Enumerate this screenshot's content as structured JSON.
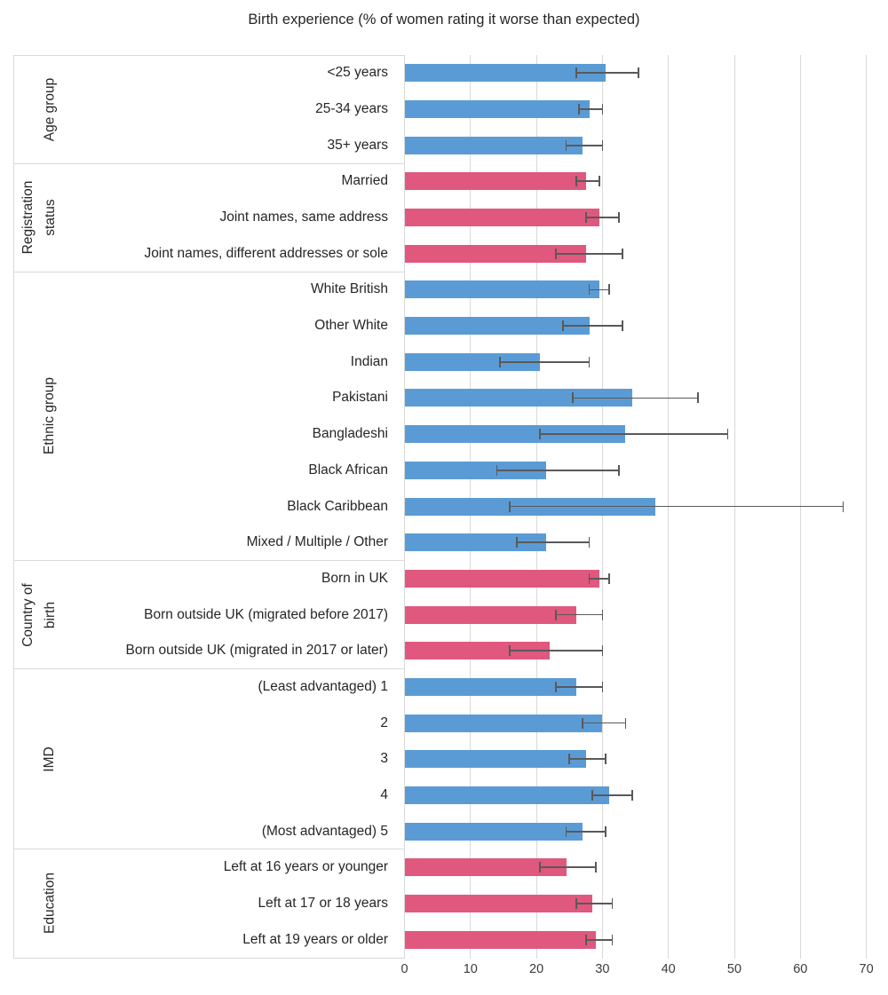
{
  "chart_data": {
    "type": "bar",
    "orientation": "horizontal",
    "title": "Birth experience (% of women rating it worse than expected)",
    "x_axis": {
      "min": 0,
      "max": 70,
      "ticks": [
        0,
        10,
        20,
        30,
        40,
        50,
        60,
        70
      ]
    },
    "grid": true,
    "legend": "none",
    "error_bars": "95% confidence intervals shown as whiskers",
    "colors": {
      "blue": "#5b9bd5",
      "pink": "#e0587e",
      "error_bar": "#595959",
      "gridline": "#d9d9d9",
      "text": "#262626"
    },
    "groups": [
      {
        "label": "Age group",
        "label_lines": [
          "Age group"
        ],
        "color": "blue",
        "items": [
          {
            "label": "<25 years",
            "value": 30.5,
            "ci_low": 26,
            "ci_high": 35.5
          },
          {
            "label": "25-34 years",
            "value": 28,
            "ci_low": 26.5,
            "ci_high": 30
          },
          {
            "label": "35+ years",
            "value": 27,
            "ci_low": 24.5,
            "ci_high": 30
          }
        ]
      },
      {
        "label": "Registration status",
        "label_lines": [
          "Registration",
          "status"
        ],
        "color": "pink",
        "items": [
          {
            "label": "Married",
            "value": 27.5,
            "ci_low": 26,
            "ci_high": 29.5
          },
          {
            "label": "Joint names, same address",
            "value": 29.5,
            "ci_low": 27.5,
            "ci_high": 32.5
          },
          {
            "label": "Joint names, different addresses or sole",
            "value": 27.5,
            "ci_low": 23,
            "ci_high": 33
          }
        ]
      },
      {
        "label": "Ethnic group",
        "label_lines": [
          "Ethnic group"
        ],
        "color": "blue",
        "items": [
          {
            "label": "White British",
            "value": 29.5,
            "ci_low": 28,
            "ci_high": 31
          },
          {
            "label": "Other White",
            "value": 28,
            "ci_low": 24,
            "ci_high": 33
          },
          {
            "label": "Indian",
            "value": 20.5,
            "ci_low": 14.5,
            "ci_high": 28
          },
          {
            "label": "Pakistani",
            "value": 34.5,
            "ci_low": 25.5,
            "ci_high": 44.5
          },
          {
            "label": "Bangladeshi",
            "value": 33.5,
            "ci_low": 20.5,
            "ci_high": 49
          },
          {
            "label": "Black African",
            "value": 21.5,
            "ci_low": 14,
            "ci_high": 32.5
          },
          {
            "label": "Black Caribbean",
            "value": 38,
            "ci_low": 16,
            "ci_high": 66.5
          },
          {
            "label": "Mixed / Multiple / Other",
            "value": 21.5,
            "ci_low": 17,
            "ci_high": 28
          }
        ]
      },
      {
        "label": "Country of birth",
        "label_lines": [
          "Country of",
          "birth"
        ],
        "color": "pink",
        "items": [
          {
            "label": "Born in UK",
            "value": 29.5,
            "ci_low": 28,
            "ci_high": 31
          },
          {
            "label": "Born outside UK (migrated before 2017)",
            "value": 26,
            "ci_low": 23,
            "ci_high": 30
          },
          {
            "label": "Born outside UK (migrated in 2017 or later)",
            "value": 22,
            "ci_low": 16,
            "ci_high": 30
          }
        ]
      },
      {
        "label": "IMD",
        "label_lines": [
          "IMD"
        ],
        "color": "blue",
        "items": [
          {
            "label": "(Least advantaged) 1",
            "value": 26,
            "ci_low": 23,
            "ci_high": 30
          },
          {
            "label": "2",
            "value": 30,
            "ci_low": 27,
            "ci_high": 33.5
          },
          {
            "label": "3",
            "value": 27.5,
            "ci_low": 25,
            "ci_high": 30.5
          },
          {
            "label": "4",
            "value": 31,
            "ci_low": 28.5,
            "ci_high": 34.5
          },
          {
            "label": "(Most advantaged) 5",
            "value": 27,
            "ci_low": 24.5,
            "ci_high": 30.5
          }
        ]
      },
      {
        "label": "Education",
        "label_lines": [
          "Education"
        ],
        "color": "pink",
        "items": [
          {
            "label": "Left at 16 years or younger",
            "value": 24.5,
            "ci_low": 20.5,
            "ci_high": 29
          },
          {
            "label": "Left at 17 or 18 years",
            "value": 28.5,
            "ci_low": 26,
            "ci_high": 31.5
          },
          {
            "label": "Left at 19 years or older",
            "value": 29,
            "ci_low": 27.5,
            "ci_high": 31.5
          }
        ]
      }
    ]
  }
}
